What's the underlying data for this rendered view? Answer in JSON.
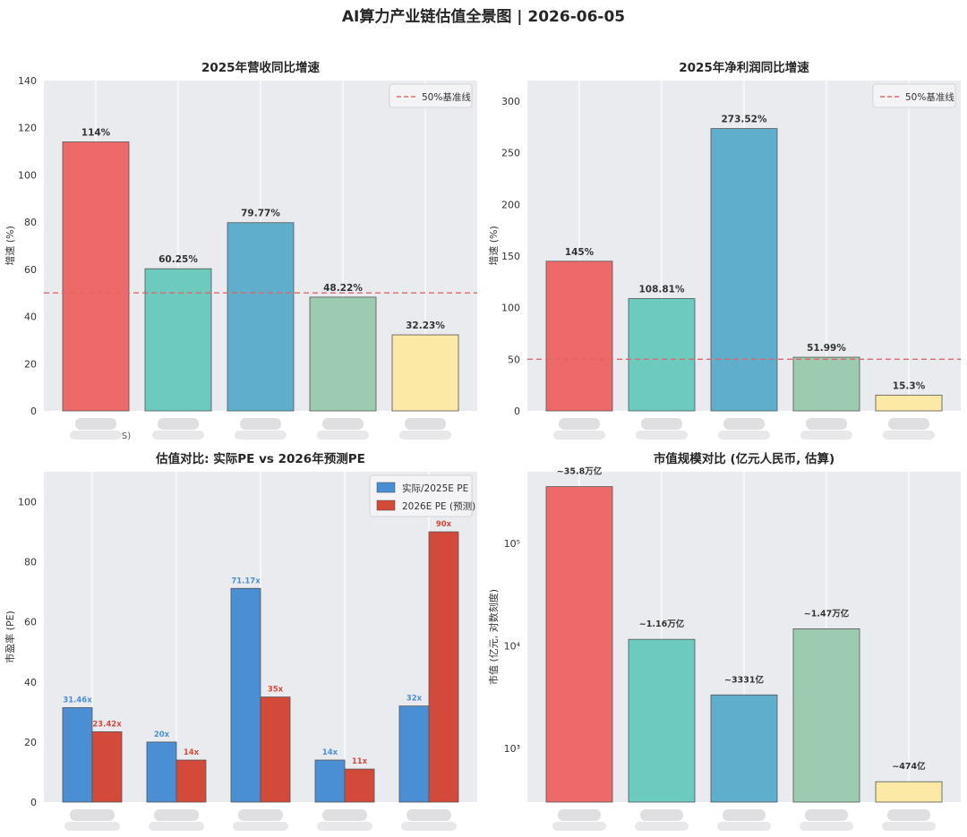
{
  "suptitle": "AI算力产业链估值全景图 | 2026-06-05",
  "colors": {
    "bars": [
      "#EE6A68",
      "#6CCABE",
      "#5FAECB",
      "#9CCBB1",
      "#FBE9A5"
    ],
    "actual_pe": "#4A8FD4",
    "forecast_pe": "#D44A3A",
    "baseline": "#E06666",
    "plot_bg": "#EAEBEF"
  },
  "chart_data": [
    {
      "type": "bar",
      "title": "2025年营收同比增速",
      "ylabel": "增速 (%)",
      "ylim": [
        0,
        140
      ],
      "yticks": [
        0,
        20,
        40,
        60,
        80,
        100,
        120,
        140
      ],
      "values": [
        114,
        60.25,
        79.77,
        48.22,
        32.23
      ],
      "value_labels": [
        "114%",
        "60.25%",
        "79.77%",
        "48.22%",
        "32.23%"
      ],
      "category_labels_visible": [
        "S)",
        "",
        "",
        "",
        ""
      ],
      "categories_obscured": true,
      "baseline": {
        "value": 50,
        "label": "50%基准线",
        "style": "dashed"
      },
      "legend_position": "top-right",
      "grid": "x"
    },
    {
      "type": "bar",
      "title": "2025年净利润同比增速",
      "ylabel": "增速 (%)",
      "ylim": [
        0,
        320
      ],
      "yticks": [
        0,
        50,
        100,
        150,
        200,
        250,
        300
      ],
      "values": [
        145,
        108.81,
        273.52,
        51.99,
        15.3
      ],
      "value_labels": [
        "145%",
        "108.81%",
        "273.52%",
        "51.99%",
        "15.3%"
      ],
      "category_labels_visible": [
        "",
        "",
        "",
        "",
        ""
      ],
      "categories_obscured": true,
      "baseline": {
        "value": 50,
        "label": "50%基准线",
        "style": "dashed"
      },
      "legend_position": "top-right",
      "grid": "x"
    },
    {
      "type": "bar",
      "title": "估值对比: 实际PE vs 2026年预测PE",
      "ylabel": "市盈率 (PE)",
      "ylim": [
        0,
        110
      ],
      "yticks": [
        0,
        20,
        40,
        60,
        80,
        100
      ],
      "categories_obscured": true,
      "series": [
        {
          "name": "实际/2025E PE",
          "values": [
            31.46,
            20,
            71.17,
            14,
            32
          ],
          "value_labels": [
            "31.46x",
            "20x",
            "71.17x",
            "14x",
            "32x"
          ]
        },
        {
          "name": "2026E PE (预测)",
          "values": [
            23.42,
            14,
            35,
            11,
            90
          ],
          "value_labels": [
            "23.42x",
            "14x",
            "35x",
            "11x",
            "90x"
          ]
        }
      ],
      "legend_position": "top-right",
      "grid": "x"
    },
    {
      "type": "bar",
      "title": "市值规模对比 (亿元人民币, 估算)",
      "ylabel": "市值 (亿元, 对数刻度)",
      "yscale": "log",
      "ylim": [
        300,
        500000
      ],
      "yticks": [
        1000,
        10000,
        100000
      ],
      "ytick_labels": [
        "10³",
        "10⁴",
        "10⁵"
      ],
      "values": [
        358000,
        11600,
        3331,
        14700,
        474
      ],
      "value_labels": [
        "~35.8万亿",
        "~1.16万亿",
        "~3331亿",
        "~1.47万亿",
        "~474亿"
      ],
      "categories_obscured": true,
      "grid": "x"
    }
  ]
}
